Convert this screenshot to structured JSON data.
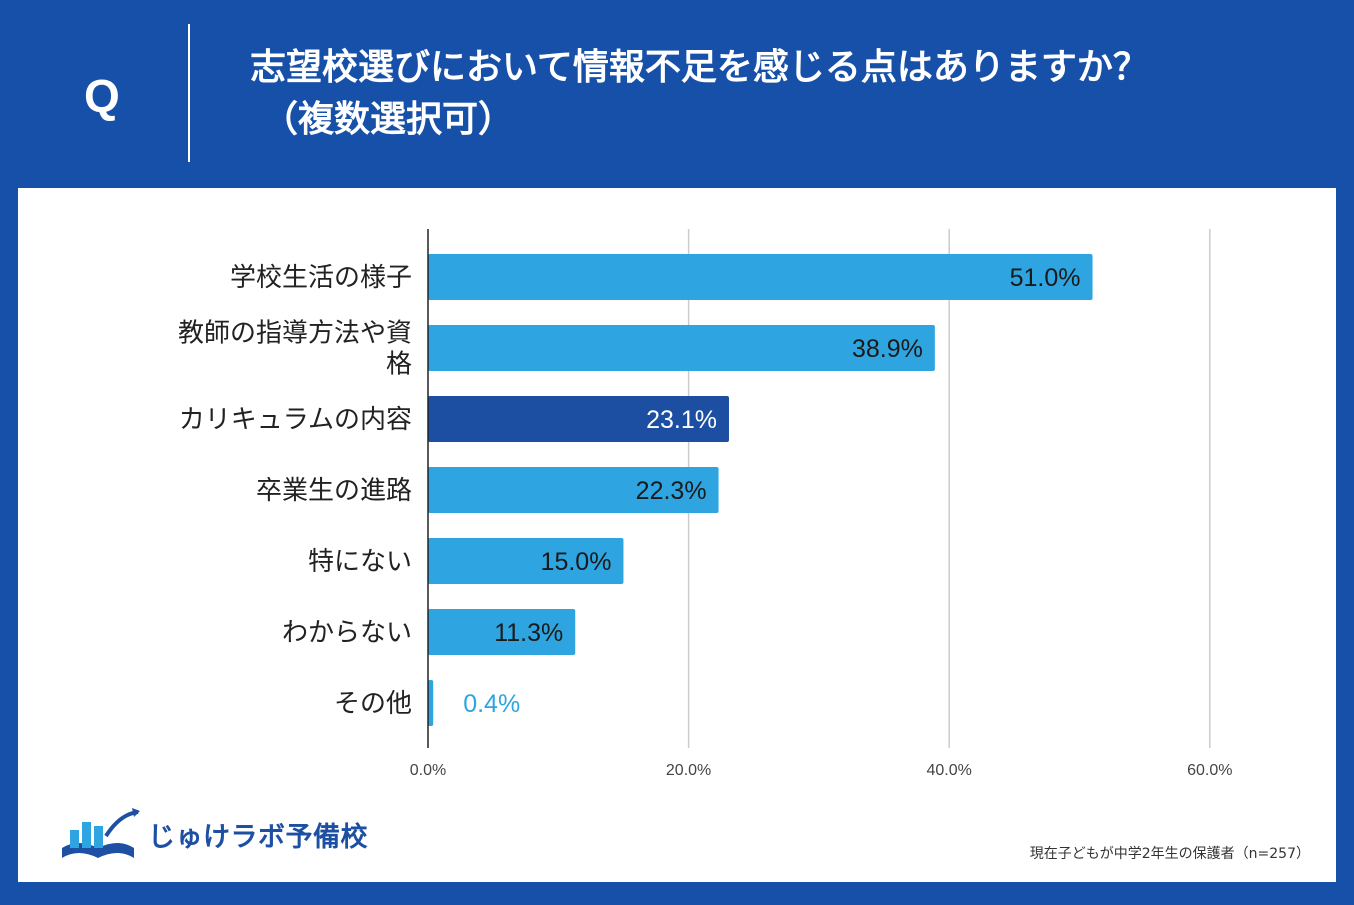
{
  "header": {
    "q_label": "Q",
    "question_line1": "志望校選びにおいて情報不足を感じる点はありますか？",
    "question_line2": "（複数選択可）"
  },
  "colors": {
    "header_bg": "#1750a8",
    "bar_default": "#2ea5e0",
    "bar_highlight": "#1c4fa2",
    "grid": "#cccccc",
    "axis": "#222222"
  },
  "chart_data": {
    "type": "bar",
    "orientation": "horizontal",
    "categories": [
      [
        "学校生活の様子"
      ],
      [
        "教師の指導方法や資",
        "格"
      ],
      [
        "カリキュラムの内容"
      ],
      [
        "卒業生の進路"
      ],
      [
        "特にない"
      ],
      [
        "わからない"
      ],
      [
        "その他"
      ]
    ],
    "values": [
      51.0,
      38.9,
      23.1,
      22.3,
      15.0,
      11.3,
      0.4
    ],
    "data_labels": [
      "51.0%",
      "38.9%",
      "23.1%",
      "22.3%",
      "15.0%",
      "11.3%",
      "0.4%"
    ],
    "highlight_index": 2,
    "xlim": [
      0,
      60
    ],
    "x_ticks": [
      "0.0%",
      "20.0%",
      "40.0%",
      "60.0%"
    ],
    "x_tick_values": [
      0,
      20,
      40,
      60
    ],
    "grid": true
  },
  "logo": {
    "name": "じゅけラボ予備校",
    "icon": "open-book-icon"
  },
  "footnote": "現在子どもが中学2年生の保護者（n=257）"
}
